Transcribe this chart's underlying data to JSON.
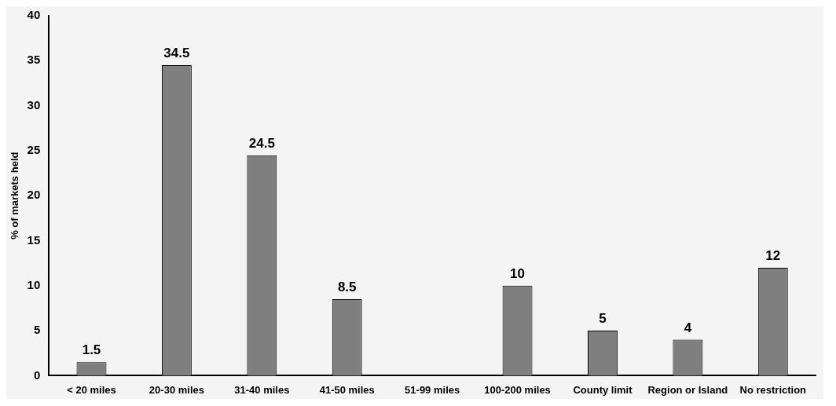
{
  "chart_data": {
    "type": "bar",
    "ylabel": "% of markets held",
    "categories": [
      "< 20 miles",
      "20-30 miles",
      "31-40 miles",
      "41-50 miles",
      "51-99 miles",
      "100-200 miles",
      "County limit",
      "Region or Island",
      "No restriction"
    ],
    "values": [
      1.5,
      34.5,
      24.5,
      8.5,
      0,
      10,
      5,
      4,
      12
    ],
    "value_labels": [
      "1.5",
      "34.5",
      "24.5",
      "8.5",
      null,
      "10",
      "5",
      "4",
      "12"
    ],
    "color": "#7f7f7f",
    "ylim": [
      0,
      40
    ],
    "yticks": [
      0,
      5,
      10,
      15,
      20,
      25,
      30,
      35,
      40
    ],
    "grid": false,
    "legend": false
  }
}
